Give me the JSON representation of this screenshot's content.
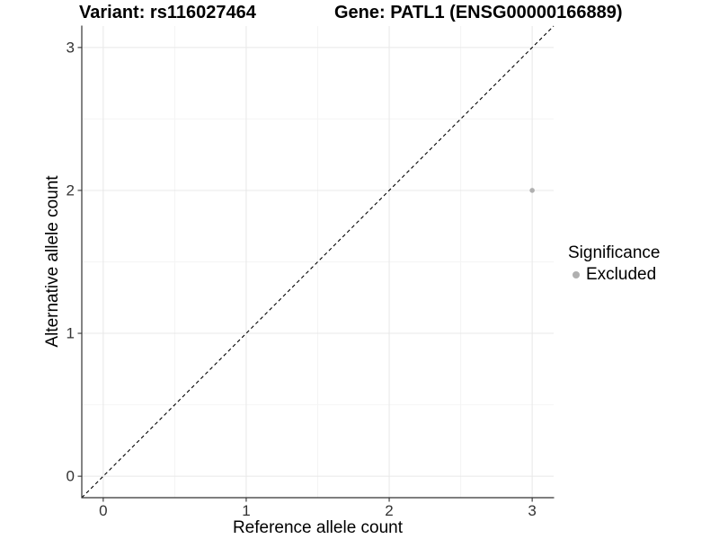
{
  "chart_data": {
    "type": "scatter",
    "title_left": "Variant: rs116027464",
    "title_right": "Gene: PATL1 (ENSG00000166889)",
    "xlabel": "Reference allele count",
    "ylabel": "Alternative allele count",
    "xlim": [
      -0.15,
      3.15
    ],
    "ylim": [
      -0.15,
      3.15
    ],
    "x_major_ticks": [
      0,
      1,
      2,
      3
    ],
    "y_major_ticks": [
      0,
      1,
      2,
      3
    ],
    "x_minor_ticks": [
      0.5,
      1.5,
      2.5
    ],
    "y_minor_ticks": [
      0.5,
      1.5,
      2.5
    ],
    "grid": true,
    "reference_line": {
      "slope": 1,
      "intercept": 0,
      "style": "dashed",
      "color": "#000000"
    },
    "series": [
      {
        "name": "Excluded",
        "color": "#b0b0b0",
        "points": [
          {
            "x": 3,
            "y": 2
          }
        ]
      }
    ],
    "legend": {
      "title": "Significance",
      "position": "right",
      "items": [
        {
          "label": "Excluded",
          "color": "#b0b0b0"
        }
      ]
    },
    "colors": {
      "grid_major": "#e8e8e8",
      "grid_minor": "#f4f4f4",
      "axis_line": "#333333",
      "tick_label": "#333333",
      "title_text": "#000000"
    }
  }
}
